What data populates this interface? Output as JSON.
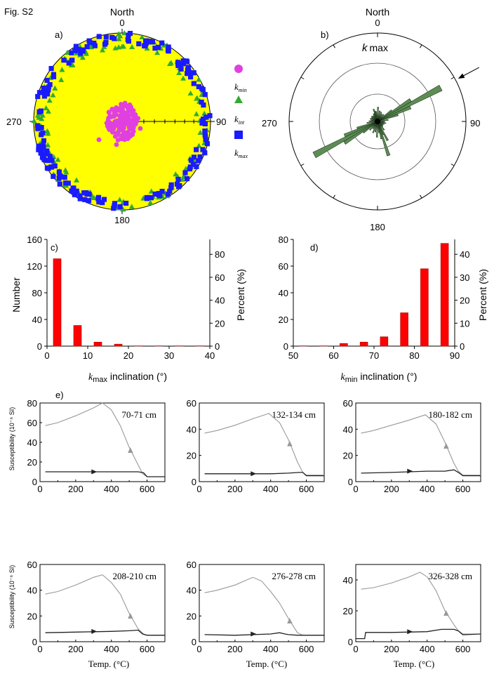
{
  "figure_label": "Fig. S2",
  "panels": {
    "a": "a)",
    "b": "b)",
    "c": "c)",
    "d": "d)",
    "e": "e)"
  },
  "chart_data": [
    {
      "panel": "a",
      "type": "scatter",
      "title": "",
      "subtitle": "stereonet (equal-area), lower hemisphere",
      "compass": {
        "north": "North",
        "n": "0",
        "e": "90",
        "s": "180",
        "w": "270"
      },
      "fill_color": "#ffff00",
      "legend": [
        {
          "key": "kmin",
          "base": "k",
          "sub": "min",
          "marker": "circle",
          "color": "#e040e0"
        },
        {
          "key": "kint",
          "base": "k",
          "sub": "int",
          "marker": "triangle",
          "color": "#33aa33"
        },
        {
          "key": "kmax",
          "base": "k",
          "sub": "max",
          "marker": "square",
          "color": "#1a1aff"
        }
      ],
      "legend_placement": "right",
      "series": [
        {
          "name": "kmin",
          "description": "clustered near vertical (center)",
          "count_approx": 170,
          "inclination_range": [
            70,
            90
          ]
        },
        {
          "name": "kint",
          "description": "near horizontal, distributed around primitive",
          "inclination_range": [
            0,
            20
          ]
        },
        {
          "name": "kmax",
          "description": "near horizontal, distributed around primitive",
          "inclination_range": [
            0,
            20
          ]
        }
      ]
    },
    {
      "panel": "b",
      "type": "rose",
      "title": "k max",
      "title_base": "k",
      "title_sub": "max",
      "compass": {
        "north": "North",
        "n": "0",
        "e": "90",
        "s": "180",
        "w": "270"
      },
      "petal_color": "#5e8c55",
      "arrow_azimuth_deg": 62,
      "rings": 3,
      "petals": [
        {
          "az": 62,
          "len": 1.0
        },
        {
          "az": 242,
          "len": 1.0
        },
        {
          "az": 57,
          "len": 0.55
        },
        {
          "az": 237,
          "len": 0.55
        },
        {
          "az": 67,
          "len": 0.5
        },
        {
          "az": 247,
          "len": 0.5
        },
        {
          "az": 72,
          "len": 0.3
        },
        {
          "az": 252,
          "len": 0.3
        },
        {
          "az": 52,
          "len": 0.25
        },
        {
          "az": 232,
          "len": 0.25
        },
        {
          "az": 162,
          "len": 0.5
        },
        {
          "az": 342,
          "len": 0.18
        },
        {
          "az": 167,
          "len": 0.25
        },
        {
          "az": 347,
          "len": 0.15
        },
        {
          "az": 157,
          "len": 0.2
        },
        {
          "az": 337,
          "len": 0.12
        },
        {
          "az": 172,
          "len": 0.16
        },
        {
          "az": 352,
          "len": 0.14
        },
        {
          "az": 2,
          "len": 0.2
        },
        {
          "az": 182,
          "len": 0.22
        },
        {
          "az": 12,
          "len": 0.15
        },
        {
          "az": 192,
          "len": 0.15
        },
        {
          "az": 22,
          "len": 0.14
        },
        {
          "az": 202,
          "len": 0.17
        },
        {
          "az": 32,
          "len": 0.12
        },
        {
          "az": 212,
          "len": 0.12
        },
        {
          "az": 42,
          "len": 0.13
        },
        {
          "az": 222,
          "len": 0.16
        },
        {
          "az": 82,
          "len": 0.15
        },
        {
          "az": 262,
          "len": 0.15
        },
        {
          "az": 92,
          "len": 0.1
        },
        {
          "az": 272,
          "len": 0.12
        },
        {
          "az": 102,
          "len": 0.12
        },
        {
          "az": 282,
          "len": 0.1
        },
        {
          "az": 112,
          "len": 0.1
        },
        {
          "az": 292,
          "len": 0.11
        },
        {
          "az": 122,
          "len": 0.09
        },
        {
          "az": 302,
          "len": 0.1
        },
        {
          "az": 132,
          "len": 0.1
        },
        {
          "az": 312,
          "len": 0.11
        },
        {
          "az": 142,
          "len": 0.15
        },
        {
          "az": 322,
          "len": 0.1
        },
        {
          "az": 152,
          "len": 0.3
        },
        {
          "az": 332,
          "len": 0.12
        }
      ]
    },
    {
      "panel": "c",
      "type": "bar",
      "color": "#ff0000",
      "xlabel_base": "k",
      "xlabel_sub": "max",
      "xlabel_rest": " inclination (°)",
      "ylabel": "Number",
      "ylabel_right": "Percent (%)",
      "xlim": [
        0,
        40
      ],
      "ylim": [
        0,
        160
      ],
      "y2lim": [
        0,
        93
      ],
      "xticks": [
        "0",
        "10",
        "20",
        "30",
        "40"
      ],
      "yticks": [
        "0",
        "40",
        "80",
        "120",
        "160"
      ],
      "y2ticks": [
        "0",
        "20",
        "40",
        "60",
        "80"
      ],
      "x": [
        2.5,
        7.5,
        12.5,
        17.5,
        22.5,
        27.5,
        32.5,
        37.5
      ],
      "values": [
        131,
        31,
        6,
        3,
        0,
        0,
        0,
        0
      ]
    },
    {
      "panel": "d",
      "type": "bar",
      "color": "#ff0000",
      "xlabel_base": "k",
      "xlabel_sub": "min",
      "xlabel_rest": " inclination (°)",
      "ylabel": "",
      "ylabel_right": "Percent (%)",
      "xlim": [
        50,
        90
      ],
      "ylim": [
        0,
        80
      ],
      "y2lim": [
        0,
        46.5
      ],
      "xticks": [
        "50",
        "60",
        "70",
        "80",
        "90"
      ],
      "yticks": [
        "0",
        "20",
        "40",
        "60",
        "80"
      ],
      "y2ticks": [
        "0",
        "10",
        "20",
        "30",
        "40"
      ],
      "x": [
        52.5,
        57.5,
        62.5,
        67.5,
        72.5,
        77.5,
        82.5,
        87.5
      ],
      "values": [
        0,
        0,
        2,
        3,
        7,
        25,
        58,
        77
      ]
    },
    {
      "panel": "e",
      "type": "line",
      "xlabel": "Temp. (°C)",
      "ylabel": "Susceptibility (10⁻⁶ SI)",
      "xticks": [
        "0",
        "200",
        "400",
        "600"
      ],
      "xlim": [
        0,
        700
      ],
      "series_names": [
        "heating",
        "cooling"
      ],
      "heating_color": "#222222",
      "cooling_color": "#999999",
      "plots": [
        {
          "label": "70-71 cm",
          "ylim": [
            0,
            80
          ],
          "yticks": [
            "0",
            "20",
            "40",
            "60",
            "80"
          ],
          "cooling": [
            [
              30,
              57
            ],
            [
              100,
              60
            ],
            [
              200,
              67
            ],
            [
              300,
              75
            ],
            [
              350,
              80
            ],
            [
              400,
              73
            ],
            [
              450,
              57
            ],
            [
              500,
              35
            ],
            [
              550,
              17
            ],
            [
              575,
              8
            ],
            [
              600,
              5
            ],
            [
              700,
              5
            ]
          ],
          "heating": [
            [
              30,
              10
            ],
            [
              200,
              10
            ],
            [
              400,
              10
            ],
            [
              500,
              10
            ],
            [
              550,
              10
            ],
            [
              580,
              9
            ],
            [
              600,
              5
            ],
            [
              700,
              5
            ]
          ]
        },
        {
          "label": "132-134 cm",
          "ylim": [
            0,
            60
          ],
          "yticks": [
            "0",
            "20",
            "40",
            "60"
          ],
          "cooling": [
            [
              30,
              37
            ],
            [
              100,
              39
            ],
            [
              200,
              43
            ],
            [
              300,
              48
            ],
            [
              390,
              52
            ],
            [
              450,
              45
            ],
            [
              500,
              32
            ],
            [
              550,
              15
            ],
            [
              580,
              7
            ],
            [
              600,
              5
            ],
            [
              700,
              5
            ]
          ],
          "heating": [
            [
              30,
              6
            ],
            [
              200,
              6
            ],
            [
              400,
              6
            ],
            [
              500,
              6.5
            ],
            [
              560,
              7
            ],
            [
              580,
              7
            ],
            [
              600,
              4.5
            ],
            [
              700,
              4.5
            ]
          ]
        },
        {
          "label": "180-182 cm",
          "ylim": [
            0,
            60
          ],
          "yticks": [
            "0",
            "20",
            "40",
            "60"
          ],
          "cooling": [
            [
              30,
              37
            ],
            [
              100,
              39
            ],
            [
              200,
              43
            ],
            [
              300,
              47
            ],
            [
              390,
              51
            ],
            [
              450,
              44
            ],
            [
              500,
              30
            ],
            [
              550,
              14
            ],
            [
              575,
              8
            ],
            [
              600,
              5
            ],
            [
              700,
              5
            ]
          ],
          "heating": [
            [
              30,
              6.5
            ],
            [
              200,
              7
            ],
            [
              400,
              8
            ],
            [
              500,
              8
            ],
            [
              550,
              9
            ],
            [
              575,
              7
            ],
            [
              600,
              4.5
            ],
            [
              700,
              4.5
            ]
          ]
        },
        {
          "label": "208-210 cm",
          "ylim": [
            0,
            60
          ],
          "yticks": [
            "0",
            "20",
            "40",
            "60"
          ],
          "cooling": [
            [
              30,
              37
            ],
            [
              100,
              39
            ],
            [
              200,
              44
            ],
            [
              300,
              50
            ],
            [
              350,
              52
            ],
            [
              400,
              46
            ],
            [
              450,
              37
            ],
            [
              500,
              22
            ],
            [
              550,
              10
            ],
            [
              580,
              6
            ],
            [
              600,
              5
            ],
            [
              700,
              5
            ]
          ],
          "heating": [
            [
              30,
              7
            ],
            [
              200,
              7.5
            ],
            [
              400,
              8
            ],
            [
              500,
              8.5
            ],
            [
              550,
              9
            ],
            [
              575,
              6
            ],
            [
              600,
              5
            ],
            [
              700,
              5
            ]
          ]
        },
        {
          "label": "276-278 cm",
          "ylim": [
            0,
            60
          ],
          "yticks": [
            "0",
            "20",
            "40",
            "60"
          ],
          "cooling": [
            [
              30,
              38
            ],
            [
              100,
              40
            ],
            [
              200,
              44
            ],
            [
              300,
              50
            ],
            [
              350,
              47
            ],
            [
              400,
              39
            ],
            [
              450,
              30
            ],
            [
              500,
              18
            ],
            [
              550,
              7
            ],
            [
              580,
              5
            ],
            [
              700,
              5
            ]
          ],
          "heating": [
            [
              30,
              5.5
            ],
            [
              200,
              5
            ],
            [
              400,
              6
            ],
            [
              450,
              7
            ],
            [
              480,
              6
            ],
            [
              500,
              5.5
            ],
            [
              550,
              5
            ],
            [
              700,
              5
            ]
          ]
        },
        {
          "label": "326-328 cm",
          "ylim": [
            0,
            50
          ],
          "yticks": [
            "0",
            "20",
            "40"
          ],
          "cooling": [
            [
              30,
              34
            ],
            [
              100,
              35
            ],
            [
              200,
              38
            ],
            [
              300,
              42
            ],
            [
              360,
              45
            ],
            [
              400,
              42
            ],
            [
              450,
              33
            ],
            [
              500,
              20
            ],
            [
              550,
              11
            ],
            [
              575,
              7
            ],
            [
              600,
              5
            ],
            [
              700,
              5
            ]
          ],
          "heating": [
            [
              0,
              2
            ],
            [
              50,
              2
            ],
            [
              55,
              6
            ],
            [
              200,
              6
            ],
            [
              400,
              6.5
            ],
            [
              480,
              8
            ],
            [
              550,
              8
            ],
            [
              575,
              7
            ],
            [
              600,
              4.5
            ],
            [
              700,
              5
            ]
          ]
        }
      ]
    }
  ]
}
